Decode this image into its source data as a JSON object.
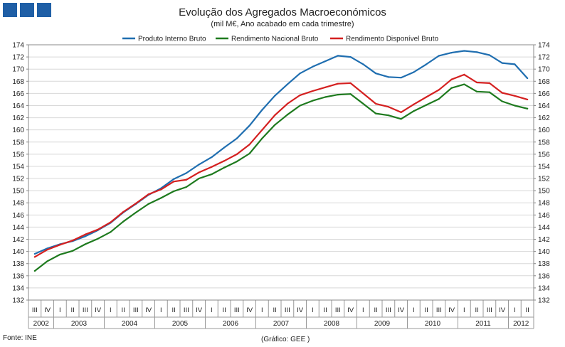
{
  "header": {
    "logo_color": "#1f5fa6"
  },
  "chart_data": {
    "type": "line",
    "title": "Evolução dos Agregados Macroeconómicos",
    "subtitle": "(mil M€, Ano acabado em cada trimestre)",
    "ylim": [
      132,
      174
    ],
    "yticks": [
      132,
      134,
      136,
      138,
      140,
      142,
      144,
      146,
      148,
      150,
      152,
      154,
      156,
      158,
      160,
      162,
      164,
      166,
      168,
      170,
      172,
      174
    ],
    "quarter_labels": [
      "III",
      "IV",
      "I",
      "II",
      "III",
      "IV",
      "I",
      "II",
      "III",
      "IV",
      "I",
      "II",
      "III",
      "IV",
      "I",
      "II",
      "III",
      "IV",
      "I",
      "II",
      "III",
      "IV",
      "I",
      "II",
      "III",
      "IV",
      "I",
      "II",
      "III",
      "IV",
      "I",
      "II",
      "III",
      "IV",
      "I",
      "II",
      "III",
      "IV",
      "I",
      "II"
    ],
    "year_labels": [
      {
        "label": "2002",
        "start": 0,
        "end": 1
      },
      {
        "label": "2003",
        "start": 2,
        "end": 5
      },
      {
        "label": "2004",
        "start": 6,
        "end": 9
      },
      {
        "label": "2005",
        "start": 10,
        "end": 13
      },
      {
        "label": "2006",
        "start": 14,
        "end": 17
      },
      {
        "label": "2007",
        "start": 18,
        "end": 21
      },
      {
        "label": "2008",
        "start": 22,
        "end": 25
      },
      {
        "label": "2009",
        "start": 26,
        "end": 29
      },
      {
        "label": "2010",
        "start": 30,
        "end": 33
      },
      {
        "label": "2011",
        "start": 34,
        "end": 37
      },
      {
        "label": "2012",
        "start": 38,
        "end": 39
      }
    ],
    "series": [
      {
        "name": "Produto Interno Bruto",
        "color": "#1f6eb0",
        "values": [
          139.6,
          140.5,
          141.2,
          141.7,
          142.5,
          143.5,
          144.7,
          146.4,
          147.8,
          149.3,
          150.4,
          151.9,
          152.9,
          154.3,
          155.5,
          157.1,
          158.6,
          160.7,
          163.3,
          165.6,
          167.5,
          169.3,
          170.4,
          171.3,
          172.2,
          172.0,
          170.8,
          169.3,
          168.7,
          168.6,
          169.5,
          170.8,
          172.2,
          172.7,
          173.0,
          172.8,
          172.3,
          171.0,
          170.8,
          168.5
        ]
      },
      {
        "name": "Rendimento Nacional Bruto",
        "color": "#1e7a1e",
        "values": [
          136.8,
          138.4,
          139.5,
          140.1,
          141.2,
          142.1,
          143.2,
          144.9,
          146.4,
          147.8,
          148.8,
          149.9,
          150.6,
          152.0,
          152.7,
          153.8,
          154.8,
          156.1,
          158.6,
          160.8,
          162.5,
          164.0,
          164.8,
          165.4,
          165.8,
          165.9,
          164.3,
          162.7,
          162.4,
          161.8,
          163.1,
          164.1,
          165.1,
          166.9,
          167.5,
          166.3,
          166.2,
          164.7,
          164.0,
          163.5
        ]
      },
      {
        "name": "Rendimento Disponível Bruto",
        "color": "#d42020",
        "values": [
          139.1,
          140.3,
          141.1,
          141.8,
          142.8,
          143.6,
          144.8,
          146.5,
          147.9,
          149.4,
          150.2,
          151.5,
          151.8,
          153.0,
          153.9,
          154.9,
          156.0,
          157.6,
          160.0,
          162.4,
          164.3,
          165.7,
          166.4,
          167.0,
          167.6,
          167.7,
          166.0,
          164.3,
          163.8,
          162.9,
          164.2,
          165.4,
          166.6,
          168.3,
          169.1,
          167.8,
          167.7,
          166.1,
          165.6,
          165.0
        ]
      }
    ]
  },
  "footer": {
    "source": "Fonte: INE",
    "credit": "(Gráfico: GEE )"
  }
}
